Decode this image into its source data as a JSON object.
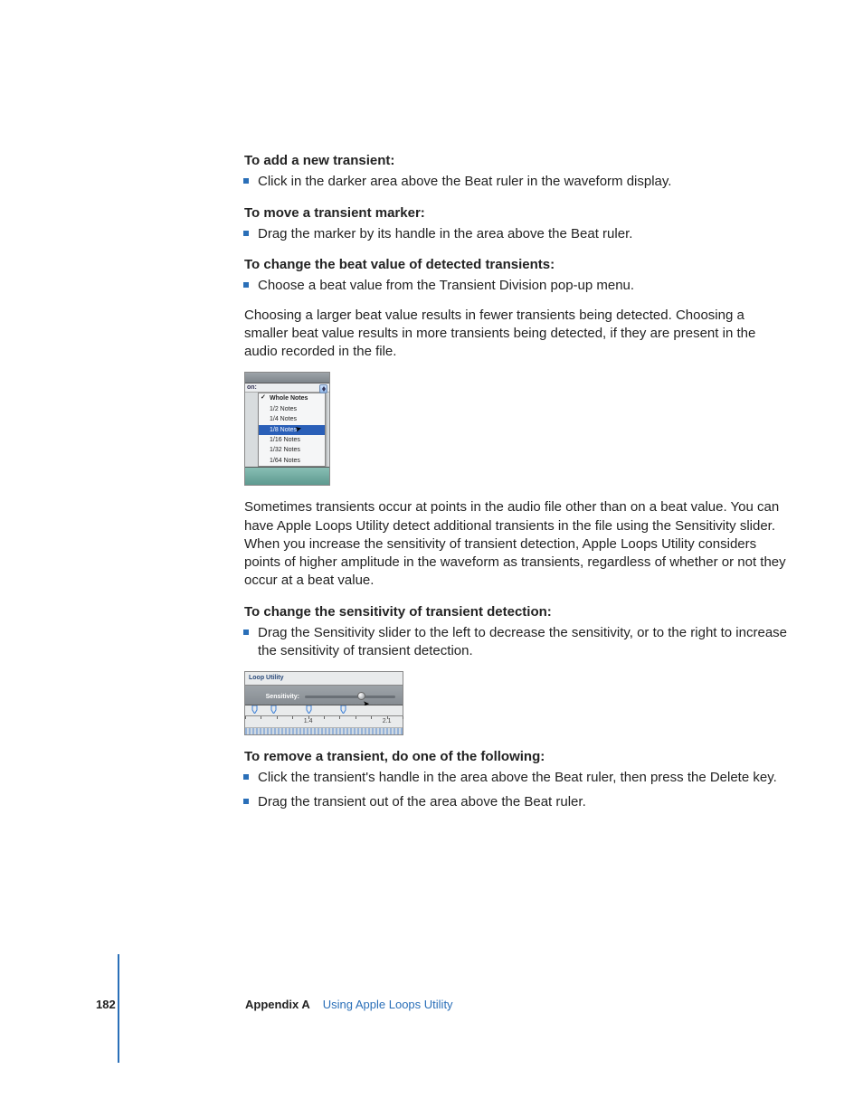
{
  "sections": {
    "s1": {
      "heading": "To add a new transient:",
      "bullet1": "Click in the darker area above the Beat ruler in the waveform display."
    },
    "s2": {
      "heading": "To move a transient marker:",
      "bullet1": "Drag the marker by its handle in the area above the Beat ruler."
    },
    "s3": {
      "heading": "To change the beat value of detected transients:",
      "bullet1": "Choose a beat value from the Transient Division pop-up menu.",
      "para": "Choosing a larger beat value results in fewer transients being detected. Choosing a smaller beat value results in more transients being detected, if they are present in the audio recorded in the file."
    },
    "s4": {
      "para": "Sometimes transients occur at points in the audio file other than on a beat value. You can have Apple Loops Utility detect additional transients in the file using the Sensitivity slider. When you increase the sensitivity of transient detection, Apple Loops Utility considers points of higher amplitude in the waveform as transients, regardless of whether or not they occur at a beat value."
    },
    "s5": {
      "heading": "To change the sensitivity of transient detection:",
      "bullet1": "Drag the Sensitivity slider to the left to decrease the sensitivity, or to the right to increase the sensitivity of transient detection."
    },
    "s6": {
      "heading": "To remove a transient, do one of the following:",
      "bullet1": "Click the transient's handle in the area above the Beat ruler, then press the Delete key.",
      "bullet2": "Drag the transient out of the area above the Beat ruler."
    }
  },
  "fig1": {
    "on_label": "on:",
    "options": [
      "Whole Notes",
      "1/2 Notes",
      "1/4 Notes",
      "1/8 Notes",
      "1/16 Notes",
      "1/32 Notes",
      "1/64 Notes"
    ],
    "checked_index": 0,
    "selected_index": 3,
    "colors": {
      "bar": "#8a9096",
      "menu_bg": "#f5f6f7",
      "sel": "#2a5fb8",
      "bottom": "#6aa69b"
    }
  },
  "fig2": {
    "window_title": "Loop Utility",
    "label": "Sensitivity:",
    "thumb_pct": 62,
    "pin_positions_pct": [
      6,
      18,
      40,
      62
    ],
    "ruler_numbers": [
      {
        "text": "1.4",
        "pct": 40
      },
      {
        "text": "2.1",
        "pct": 90
      }
    ],
    "colors": {
      "panel": "#8e949a",
      "track": "#6a7076",
      "thumb": "#cfd3d6",
      "pin": "#3a7fd8"
    }
  },
  "footer": {
    "page": "182",
    "appendix": "Appendix A",
    "title": "Using Apple Loops Utility",
    "accent_color": "#2a6fb8"
  }
}
